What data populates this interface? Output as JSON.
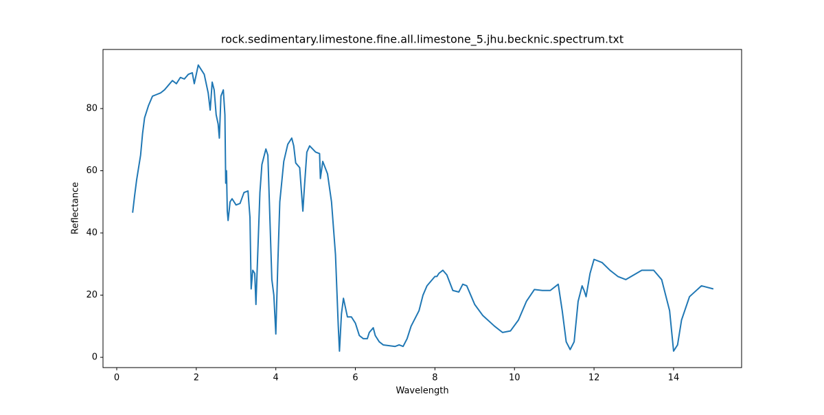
{
  "chart_data": {
    "type": "line",
    "title": "rock.sedimentary.limestone.fine.all.limestone_5.jhu.becknic.spectrum.txt",
    "xlabel": "Wavelength",
    "ylabel": "Reflectance",
    "xlim": [
      -0.345,
      15.71
    ],
    "ylim": [
      -3.3,
      99.0
    ],
    "xticks": [
      0,
      2,
      4,
      6,
      8,
      10,
      12,
      14
    ],
    "yticks": [
      0,
      20,
      40,
      60,
      80
    ],
    "grid": false,
    "x": [
      0.4,
      0.45,
      0.5,
      0.6,
      0.65,
      0.7,
      0.8,
      0.9,
      1.0,
      1.1,
      1.2,
      1.3,
      1.4,
      1.5,
      1.6,
      1.7,
      1.8,
      1.9,
      1.95,
      2.0,
      2.05,
      2.1,
      2.2,
      2.3,
      2.35,
      2.4,
      2.45,
      2.5,
      2.55,
      2.58,
      2.62,
      2.68,
      2.72,
      2.74,
      2.76,
      2.78,
      2.8,
      2.85,
      2.9,
      3.0,
      3.1,
      3.2,
      3.3,
      3.35,
      3.38,
      3.42,
      3.47,
      3.5,
      3.55,
      3.6,
      3.65,
      3.75,
      3.8,
      3.85,
      3.9,
      3.95,
      4.0,
      4.05,
      4.1,
      4.2,
      4.3,
      4.4,
      4.45,
      4.5,
      4.6,
      4.68,
      4.72,
      4.78,
      4.85,
      5.0,
      5.1,
      5.12,
      5.18,
      5.3,
      5.4,
      5.5,
      5.57,
      5.6,
      5.65,
      5.7,
      5.8,
      5.9,
      6.0,
      6.1,
      6.2,
      6.3,
      6.35,
      6.45,
      6.5,
      6.6,
      6.7,
      7.0,
      7.1,
      7.2,
      7.3,
      7.4,
      7.6,
      7.7,
      7.8,
      8.0,
      8.05,
      8.1,
      8.2,
      8.3,
      8.45,
      8.6,
      8.7,
      8.8,
      8.9,
      9.0,
      9.2,
      9.5,
      9.7,
      9.9,
      10.1,
      10.3,
      10.5,
      10.7,
      10.9,
      11.1,
      11.2,
      11.3,
      11.4,
      11.5,
      11.6,
      11.7,
      11.75,
      11.8,
      11.9,
      12.0,
      12.2,
      12.4,
      12.6,
      12.8,
      13.0,
      13.2,
      13.5,
      13.7,
      13.9,
      14.0,
      14.1,
      14.2,
      14.4,
      14.7,
      15.0
    ],
    "series": [
      {
        "color": "#1f77b4",
        "values": [
          46.5,
          52,
          57,
          65,
          72,
          77,
          81,
          84,
          84.5,
          85,
          86,
          87.5,
          89,
          88,
          90,
          89.5,
          91,
          91.5,
          88,
          91,
          94,
          93,
          91,
          85,
          79.5,
          88.5,
          86,
          78,
          75,
          70.5,
          84,
          86,
          78,
          56,
          60,
          47,
          44,
          50,
          51,
          49,
          49.5,
          53,
          53.5,
          45,
          22,
          28,
          27,
          17,
          35,
          53,
          62,
          67,
          65,
          45,
          25,
          20,
          7.5,
          30,
          50,
          63,
          68.5,
          70.5,
          68,
          62.5,
          61,
          47,
          55,
          66,
          68,
          66,
          65.5,
          57.5,
          63,
          59,
          50,
          33,
          10,
          2,
          14,
          19,
          13,
          13,
          11,
          7,
          6,
          6,
          8,
          9.5,
          7,
          5,
          4,
          3.5,
          4,
          3.5,
          6,
          10,
          15,
          20,
          23,
          26,
          26,
          27,
          28,
          26.5,
          21.5,
          21,
          23.5,
          23,
          20,
          17,
          13.5,
          10,
          8,
          8.5,
          12,
          18,
          21.8,
          21.5,
          21.5,
          23.5,
          15,
          5,
          2.5,
          5,
          18,
          23,
          21.5,
          19.5,
          27,
          31.5,
          30.5,
          28,
          26,
          25,
          26.5,
          28,
          28,
          25,
          15,
          2,
          4,
          12,
          19.5,
          23,
          22
        ]
      }
    ]
  }
}
